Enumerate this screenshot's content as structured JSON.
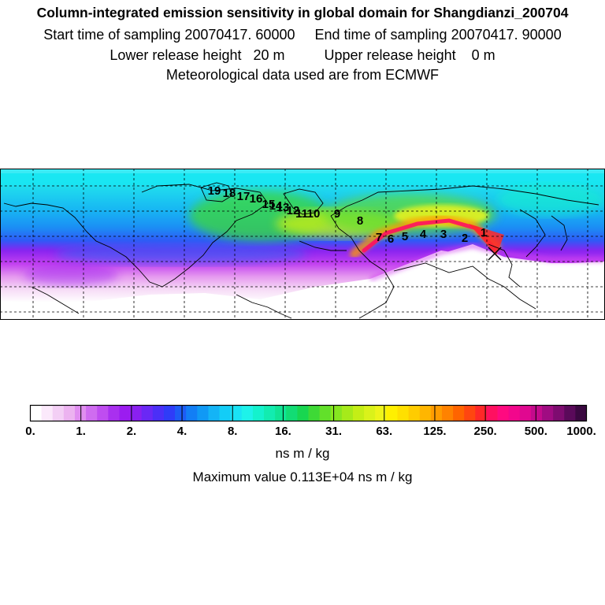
{
  "header": {
    "title": "Column-integrated emission sensitivity in global domain for Shangdianzi_200704",
    "line2": "Start time of sampling 20070417. 60000     End time of sampling 20070417. 90000",
    "line3": "Lower release height   20 m          Upper release height    0 m",
    "line4": "Meteorological data used are from ECMWF"
  },
  "chart_data": {
    "type": "heatmap",
    "title": "Column-integrated emission sensitivity in global domain for Shangdianzi_200704",
    "projection": "lat-lon",
    "grid": true,
    "receptor_marker": "x",
    "trajectory_labels": [
      "1",
      "2",
      "3",
      "4",
      "5",
      "6",
      "7",
      "8",
      "9",
      "10",
      "11",
      "12",
      "13",
      "14",
      "15",
      "16",
      "17",
      "18",
      "19"
    ],
    "colorbar": {
      "tick_labels": [
        "0.",
        "1.",
        "2.",
        "4.",
        "8.",
        "16.",
        "31.",
        "63.",
        "125.",
        "250.",
        "500.",
        "1000."
      ],
      "units": "ns m / kg",
      "colors": [
        "#ffffff",
        "#fbe9fb",
        "#f3cff5",
        "#ecb3f0",
        "#e08ef0",
        "#cf6cf0",
        "#bf4df0",
        "#a930ef",
        "#9b1cf0",
        "#8a20f0",
        "#6a28f5",
        "#4b2ff7",
        "#2f3cf8",
        "#1d5cf5",
        "#127ef5",
        "#1099f5",
        "#14b4f6",
        "#13cdf7",
        "#1ae3f5",
        "#1ef2ea",
        "#14f2cd",
        "#12ecb0",
        "#10e494",
        "#12dc74",
        "#18d650",
        "#3ed936",
        "#62e02a",
        "#86e620",
        "#a6ea1a",
        "#c4ee16",
        "#daf21a",
        "#eef41a",
        "#fff000",
        "#ffe000",
        "#ffcc00",
        "#ffb600",
        "#ff9c00",
        "#ff8200",
        "#ff6400",
        "#ff4610",
        "#ff2828",
        "#ff1060",
        "#ff0a80",
        "#f2078c",
        "#e00890",
        "#c40a8c",
        "#a00c82",
        "#7e0c70",
        "#5a0a5a",
        "#3a0840"
      ]
    },
    "max_value_text": "Maximum value  0.113E+04 ns m / kg"
  }
}
